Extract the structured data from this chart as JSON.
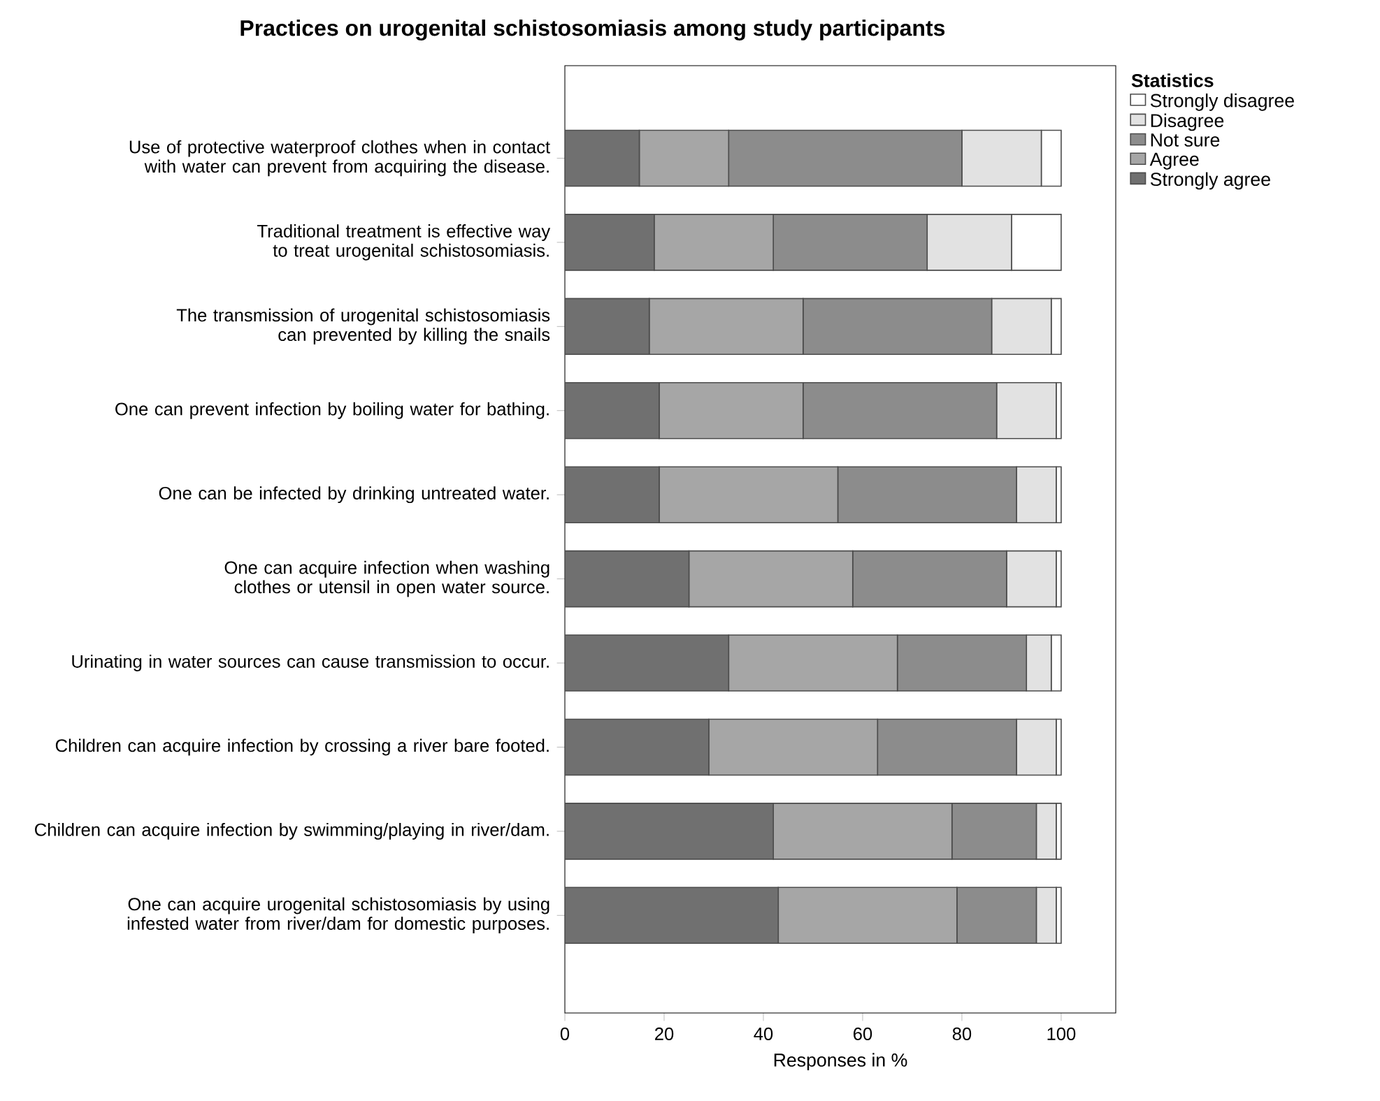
{
  "chart_data": {
    "type": "bar",
    "orientation": "horizontal",
    "stacked": true,
    "title": "Practices on urogenital schistosomiasis among study participants",
    "xlabel": "Responses in %",
    "legend_title": "Statistics",
    "legend": "top right",
    "categories": [
      "Use of protective waterproof clothes when in contact with water can prevent from acquiring the disease.",
      "Traditional treatment is effective way to treat urogenital schistosomiasis.",
      "The transmission of urogenital schistosomiasis can prevented by killing the snails",
      "One can prevent infection by boiling water for bathing.",
      "One can be infected by drinking untreated water.",
      "One can acquire infection when washing clothes or utensil in open water source.",
      "Urinating in water sources can cause transmission to occur.",
      "Children can acquire infection by crossing a river bare footed.",
      "Children can acquire infection by swimming/playing in river/dam.",
      "One can acquire urogenital schistosomiasis by using infested water from river/dam for domestic purposes."
    ],
    "series": [
      {
        "name": "Strongly agree",
        "color": "#707070",
        "values": [
          15,
          18,
          17,
          19,
          19,
          25,
          33,
          29,
          42,
          43
        ]
      },
      {
        "name": "Agree",
        "color": "#a6a6a6",
        "values": [
          18,
          24,
          31,
          29,
          36,
          33,
          34,
          34,
          36,
          36
        ]
      },
      {
        "name": "Not sure",
        "color": "#8c8c8c",
        "values": [
          47,
          31,
          38,
          39,
          36,
          31,
          26,
          28,
          17,
          16
        ]
      },
      {
        "name": "Disagree",
        "color": "#e2e2e2",
        "values": [
          16,
          17,
          12,
          12,
          8,
          10,
          5,
          8,
          4,
          4
        ]
      },
      {
        "name": "Strongly disagree",
        "color": "#ffffff",
        "values": [
          4,
          10,
          2,
          1,
          1,
          1,
          2,
          1,
          1,
          1
        ]
      }
    ],
    "xlim": [
      0,
      111
    ],
    "xticks": [
      0,
      20,
      40,
      60,
      80,
      100
    ],
    "grid": false
  }
}
